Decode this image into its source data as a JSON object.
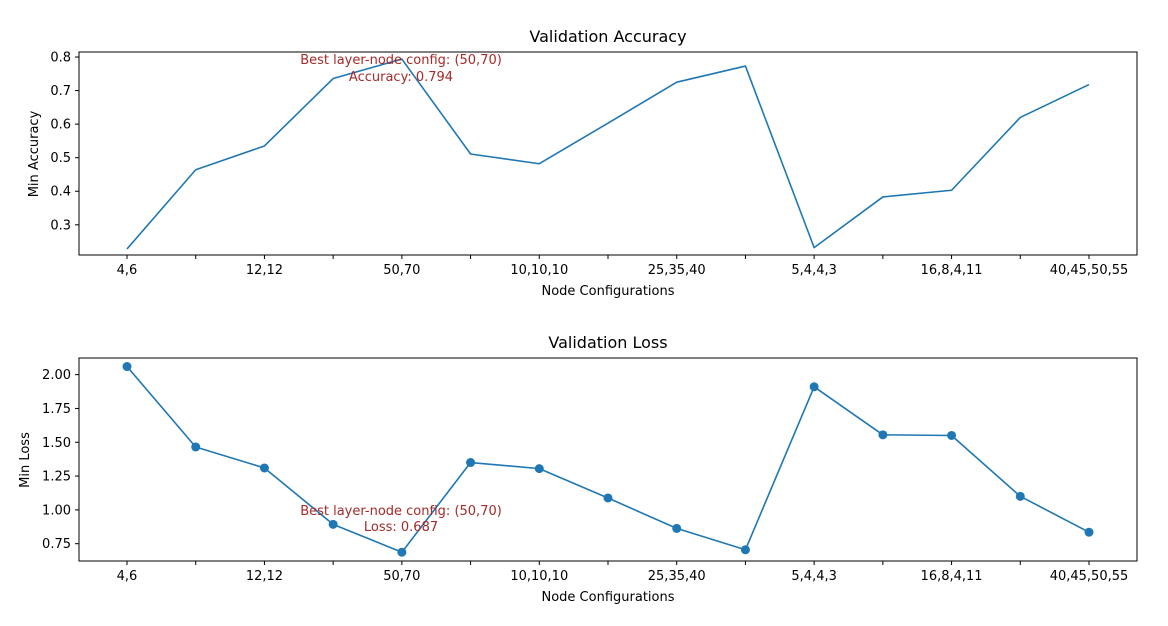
{
  "chart_data": [
    {
      "type": "line",
      "title": "Validation Accuracy",
      "xlabel": "Node Configurations",
      "ylabel": "Min Accuracy",
      "categories": [
        "4,6",
        "",
        "12,12",
        "",
        "50,70",
        "",
        "10,10,10",
        "",
        "25,35,40",
        "",
        "5,4,4,3",
        "",
        "16,8,4,11",
        "",
        "40,45,50,55"
      ],
      "values": [
        0.228,
        0.464,
        0.535,
        0.736,
        0.794,
        0.511,
        0.482,
        0.603,
        0.725,
        0.773,
        0.232,
        0.383,
        0.403,
        0.62,
        0.718
      ],
      "markers": false,
      "color": "#1f77b4",
      "ylim": [
        0.21,
        0.815
      ],
      "yticks": [
        0.3,
        0.4,
        0.5,
        0.6,
        0.7,
        0.8
      ],
      "ytick_labels": [
        "0.3",
        "0.4",
        "0.5",
        "0.6",
        "0.7",
        "0.8"
      ],
      "annotation": {
        "line1": "Best layer-node config: (50,70)",
        "line2": "Accuracy: 0.794",
        "color": "#a52a2a"
      }
    },
    {
      "type": "line",
      "title": "Validation Loss",
      "xlabel": "Node Configurations",
      "ylabel": "Min Loss",
      "categories": [
        "4,6",
        "",
        "12,12",
        "",
        "50,70",
        "",
        "10,10,10",
        "",
        "25,35,40",
        "",
        "5,4,4,3",
        "",
        "16,8,4,11",
        "",
        "40,45,50,55"
      ],
      "values": [
        2.06,
        1.465,
        1.31,
        0.893,
        0.687,
        1.35,
        1.305,
        1.088,
        0.863,
        0.705,
        1.91,
        1.555,
        1.55,
        1.1,
        0.835
      ],
      "markers": true,
      "color": "#1f77b4",
      "ylim": [
        0.622,
        2.123
      ],
      "yticks": [
        0.75,
        1.0,
        1.25,
        1.5,
        1.75,
        2.0
      ],
      "ytick_labels": [
        "0.75",
        "1.00",
        "1.25",
        "1.50",
        "1.75",
        "2.00"
      ],
      "annotation": {
        "line1": "Best layer-node config: (50,70)",
        "line2": "Loss: 0.687",
        "color": "#a52a2a"
      }
    }
  ]
}
